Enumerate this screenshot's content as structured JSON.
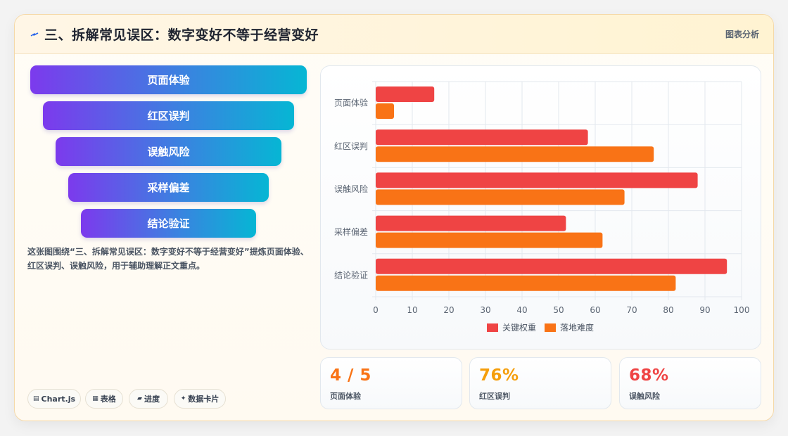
{
  "header": {
    "title": "三、拆解常见误区：数字变好不等于经营变好",
    "tag": "图表分析"
  },
  "funnel": {
    "steps": [
      "页面体验",
      "红区误判",
      "误触风险",
      "采样偏差",
      "结论验证"
    ]
  },
  "description": "这张图围绕“三、拆解常见误区：数字变好不等于经营变好”提炼页面体验、红区误判、误触风险，用于辅助理解正文重点。",
  "chips": [
    {
      "icon": "▤",
      "label": "Chart.js"
    },
    {
      "icon": "▦",
      "label": "表格"
    },
    {
      "icon": "▰",
      "label": "进度"
    },
    {
      "icon": "✦",
      "label": "数据卡片"
    }
  ],
  "stats": [
    {
      "value": "4 / 5",
      "label": "页面体验",
      "color": "#f97316"
    },
    {
      "value": "76%",
      "label": "红区误判",
      "color": "#f59e0b"
    },
    {
      "value": "68%",
      "label": "误触风险",
      "color": "#ef4444"
    }
  ],
  "colors": {
    "series1": "#ef4444",
    "series2": "#f97316"
  },
  "chart_data": {
    "type": "bar",
    "orientation": "horizontal",
    "categories": [
      "页面体验",
      "红区误判",
      "误触风险",
      "采样偏差",
      "结论验证"
    ],
    "series": [
      {
        "name": "关键权重",
        "values": [
          16,
          58,
          88,
          52,
          96
        ],
        "color": "#ef4444"
      },
      {
        "name": "落地难度",
        "values": [
          5,
          76,
          68,
          62,
          82
        ],
        "color": "#f97316"
      }
    ],
    "xlim": [
      0,
      100
    ],
    "xticks": [
      0,
      10,
      20,
      30,
      40,
      50,
      60,
      70,
      80,
      90,
      100
    ],
    "grid": true,
    "legend": "bottom"
  }
}
